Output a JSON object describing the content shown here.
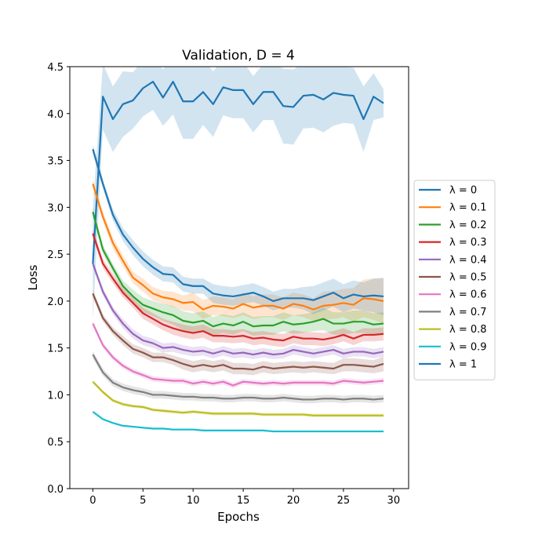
{
  "chart_data": {
    "type": "line",
    "title": "Validation, D = 4",
    "xlabel": "Epochs",
    "ylabel": "Loss",
    "xlim": [
      -2.3,
      31.5
    ],
    "ylim": [
      0.0,
      4.5
    ],
    "xticks": [
      0,
      5,
      10,
      15,
      20,
      25,
      30
    ],
    "xtick_labels": [
      "0",
      "5",
      "10",
      "15",
      "20",
      "25",
      "30"
    ],
    "yticks": [
      0.0,
      0.5,
      1.0,
      1.5,
      2.0,
      2.5,
      3.0,
      3.5,
      4.0,
      4.5
    ],
    "ytick_labels": [
      "0.0",
      "0.5",
      "1.0",
      "1.5",
      "2.0",
      "2.5",
      "3.0",
      "3.5",
      "4.0",
      "4.5"
    ],
    "legend_position": "center-right-outside",
    "x": [
      0,
      1,
      2,
      3,
      4,
      5,
      6,
      7,
      8,
      9,
      10,
      11,
      12,
      13,
      14,
      15,
      16,
      17,
      18,
      19,
      20,
      21,
      22,
      23,
      24,
      25,
      26,
      27,
      28,
      29
    ],
    "series": [
      {
        "name": "λ = 0",
        "color": "#1f77b4",
        "values": [
          2.4,
          4.18,
          3.94,
          4.1,
          4.14,
          4.27,
          4.34,
          4.17,
          4.34,
          4.13,
          4.13,
          4.23,
          4.1,
          4.28,
          4.25,
          4.25,
          4.1,
          4.23,
          4.23,
          4.08,
          4.07,
          4.19,
          4.2,
          4.15,
          4.22,
          4.2,
          4.19,
          3.94,
          4.18,
          4.11
        ],
        "band": [
          0.6,
          0.35,
          0.35,
          0.35,
          0.3,
          0.3,
          0.3,
          0.3,
          0.35,
          0.4,
          0.4,
          0.35,
          0.35,
          0.3,
          0.3,
          0.3,
          0.3,
          0.3,
          0.3,
          0.4,
          0.4,
          0.35,
          0.35,
          0.35,
          0.35,
          0.3,
          0.3,
          0.35,
          0.25,
          0.15
        ]
      },
      {
        "name": "λ = 0.1",
        "color": "#ff7f0e",
        "values": [
          3.25,
          2.9,
          2.62,
          2.43,
          2.25,
          2.17,
          2.08,
          2.04,
          2.02,
          1.98,
          1.99,
          1.91,
          1.95,
          1.94,
          1.92,
          1.97,
          1.93,
          1.95,
          1.95,
          1.92,
          1.97,
          1.95,
          1.91,
          1.95,
          1.96,
          1.98,
          1.96,
          2.03,
          2.02,
          2.0
        ],
        "band": [
          0.05,
          0.05,
          0.06,
          0.06,
          0.06,
          0.07,
          0.07,
          0.07,
          0.08,
          0.08,
          0.1,
          0.1,
          0.1,
          0.1,
          0.1,
          0.12,
          0.12,
          0.12,
          0.12,
          0.12,
          0.12,
          0.12,
          0.12,
          0.15,
          0.15,
          0.15,
          0.18,
          0.2,
          0.22,
          0.24
        ]
      },
      {
        "name": "λ = 0.2",
        "color": "#2ca02c",
        "values": [
          2.95,
          2.55,
          2.35,
          2.16,
          2.05,
          1.96,
          1.92,
          1.88,
          1.85,
          1.79,
          1.77,
          1.79,
          1.73,
          1.76,
          1.74,
          1.78,
          1.73,
          1.74,
          1.74,
          1.78,
          1.75,
          1.76,
          1.78,
          1.81,
          1.76,
          1.76,
          1.78,
          1.78,
          1.75,
          1.76
        ],
        "band": [
          0.05,
          0.05,
          0.05,
          0.06,
          0.07,
          0.08,
          0.08,
          0.09,
          0.1,
          0.1,
          0.1,
          0.1,
          0.1,
          0.1,
          0.1,
          0.1,
          0.1,
          0.1,
          0.1,
          0.1,
          0.1,
          0.1,
          0.1,
          0.12,
          0.12,
          0.12,
          0.12,
          0.12,
          0.12,
          0.12
        ]
      },
      {
        "name": "λ = 0.3",
        "color": "#d62728",
        "values": [
          2.72,
          2.4,
          2.24,
          2.09,
          1.98,
          1.87,
          1.81,
          1.75,
          1.71,
          1.68,
          1.66,
          1.68,
          1.63,
          1.63,
          1.62,
          1.63,
          1.6,
          1.61,
          1.59,
          1.58,
          1.62,
          1.6,
          1.6,
          1.59,
          1.61,
          1.64,
          1.6,
          1.64,
          1.64,
          1.65
        ],
        "band": [
          0.05,
          0.05,
          0.05,
          0.05,
          0.05,
          0.06,
          0.06,
          0.06,
          0.07,
          0.07,
          0.07,
          0.07,
          0.07,
          0.07,
          0.07,
          0.07,
          0.07,
          0.07,
          0.07,
          0.07,
          0.07,
          0.07,
          0.07,
          0.07,
          0.07,
          0.07,
          0.07,
          0.07,
          0.07,
          0.07
        ]
      },
      {
        "name": "λ = 0.4",
        "color": "#9467bd",
        "values": [
          2.4,
          2.1,
          1.9,
          1.76,
          1.65,
          1.58,
          1.55,
          1.5,
          1.51,
          1.48,
          1.46,
          1.47,
          1.44,
          1.47,
          1.44,
          1.45,
          1.43,
          1.45,
          1.43,
          1.44,
          1.48,
          1.46,
          1.44,
          1.46,
          1.48,
          1.44,
          1.46,
          1.46,
          1.44,
          1.46
        ],
        "band": [
          0.04,
          0.04,
          0.04,
          0.05,
          0.05,
          0.05,
          0.05,
          0.05,
          0.05,
          0.05,
          0.05,
          0.05,
          0.05,
          0.05,
          0.05,
          0.05,
          0.05,
          0.05,
          0.05,
          0.05,
          0.05,
          0.05,
          0.05,
          0.05,
          0.05,
          0.05,
          0.05,
          0.05,
          0.05,
          0.05
        ]
      },
      {
        "name": "λ = 0.5",
        "color": "#8c564b",
        "values": [
          2.08,
          1.82,
          1.68,
          1.58,
          1.49,
          1.45,
          1.4,
          1.4,
          1.37,
          1.33,
          1.3,
          1.32,
          1.3,
          1.32,
          1.28,
          1.28,
          1.27,
          1.3,
          1.28,
          1.29,
          1.3,
          1.29,
          1.3,
          1.29,
          1.28,
          1.32,
          1.32,
          1.31,
          1.3,
          1.33
        ],
        "band": [
          0.04,
          0.04,
          0.04,
          0.05,
          0.05,
          0.05,
          0.05,
          0.05,
          0.05,
          0.06,
          0.06,
          0.06,
          0.06,
          0.06,
          0.06,
          0.06,
          0.06,
          0.06,
          0.06,
          0.06,
          0.06,
          0.06,
          0.06,
          0.06,
          0.06,
          0.07,
          0.07,
          0.07,
          0.07,
          0.08
        ]
      },
      {
        "name": "λ = 0.6",
        "color": "#e377c2",
        "values": [
          1.76,
          1.53,
          1.4,
          1.31,
          1.25,
          1.21,
          1.17,
          1.16,
          1.15,
          1.15,
          1.12,
          1.14,
          1.12,
          1.14,
          1.1,
          1.14,
          1.13,
          1.12,
          1.13,
          1.12,
          1.13,
          1.13,
          1.13,
          1.13,
          1.12,
          1.15,
          1.14,
          1.13,
          1.14,
          1.15
        ],
        "band": [
          0.03,
          0.03,
          0.03,
          0.03,
          0.03,
          0.03,
          0.03,
          0.03,
          0.03,
          0.03,
          0.03,
          0.03,
          0.03,
          0.03,
          0.03,
          0.03,
          0.03,
          0.03,
          0.03,
          0.03,
          0.03,
          0.03,
          0.03,
          0.03,
          0.03,
          0.03,
          0.03,
          0.03,
          0.03,
          0.03
        ]
      },
      {
        "name": "λ = 0.7",
        "color": "#7f7f7f",
        "values": [
          1.43,
          1.24,
          1.13,
          1.08,
          1.05,
          1.03,
          1.0,
          1.0,
          0.99,
          0.98,
          0.98,
          0.97,
          0.97,
          0.96,
          0.96,
          0.97,
          0.97,
          0.96,
          0.96,
          0.97,
          0.96,
          0.95,
          0.95,
          0.96,
          0.96,
          0.95,
          0.96,
          0.96,
          0.95,
          0.96
        ],
        "band": [
          0.04,
          0.04,
          0.04,
          0.04,
          0.04,
          0.04,
          0.04,
          0.04,
          0.04,
          0.04,
          0.04,
          0.04,
          0.04,
          0.04,
          0.04,
          0.04,
          0.04,
          0.04,
          0.04,
          0.04,
          0.04,
          0.04,
          0.04,
          0.04,
          0.04,
          0.04,
          0.04,
          0.04,
          0.04,
          0.04
        ]
      },
      {
        "name": "λ = 0.8",
        "color": "#bcbd22",
        "values": [
          1.14,
          1.03,
          0.94,
          0.9,
          0.88,
          0.87,
          0.84,
          0.83,
          0.82,
          0.81,
          0.82,
          0.81,
          0.8,
          0.8,
          0.8,
          0.8,
          0.8,
          0.79,
          0.79,
          0.79,
          0.79,
          0.79,
          0.78,
          0.78,
          0.78,
          0.78,
          0.78,
          0.78,
          0.78,
          0.78
        ],
        "band": [
          0.02,
          0.02,
          0.02,
          0.02,
          0.02,
          0.02,
          0.02,
          0.02,
          0.02,
          0.02,
          0.02,
          0.02,
          0.02,
          0.02,
          0.02,
          0.02,
          0.02,
          0.02,
          0.02,
          0.02,
          0.02,
          0.02,
          0.02,
          0.02,
          0.02,
          0.02,
          0.02,
          0.02,
          0.02,
          0.02
        ]
      },
      {
        "name": "λ = 0.9",
        "color": "#17becf",
        "values": [
          0.82,
          0.74,
          0.7,
          0.67,
          0.66,
          0.65,
          0.64,
          0.64,
          0.63,
          0.63,
          0.63,
          0.62,
          0.62,
          0.62,
          0.62,
          0.62,
          0.62,
          0.62,
          0.61,
          0.61,
          0.61,
          0.61,
          0.61,
          0.61,
          0.61,
          0.61,
          0.61,
          0.61,
          0.61,
          0.61
        ],
        "band": [
          0.01,
          0.01,
          0.01,
          0.01,
          0.01,
          0.01,
          0.01,
          0.01,
          0.01,
          0.01,
          0.01,
          0.01,
          0.01,
          0.01,
          0.01,
          0.01,
          0.01,
          0.01,
          0.01,
          0.01,
          0.01,
          0.01,
          0.01,
          0.01,
          0.01,
          0.01,
          0.01,
          0.01,
          0.01,
          0.01
        ]
      },
      {
        "name": "λ = 1",
        "color": "#1f77b4",
        "values": [
          3.62,
          3.25,
          2.92,
          2.71,
          2.57,
          2.45,
          2.36,
          2.29,
          2.28,
          2.18,
          2.16,
          2.16,
          2.08,
          2.06,
          2.05,
          2.07,
          2.09,
          2.05,
          2.0,
          2.03,
          2.03,
          2.03,
          2.01,
          2.05,
          2.09,
          2.03,
          2.07,
          2.05,
          2.06,
          2.05
        ],
        "band": [
          0.05,
          0.05,
          0.06,
          0.07,
          0.08,
          0.08,
          0.08,
          0.08,
          0.08,
          0.08,
          0.08,
          0.08,
          0.1,
          0.1,
          0.1,
          0.1,
          0.1,
          0.1,
          0.1,
          0.1,
          0.1,
          0.12,
          0.15,
          0.15,
          0.15,
          0.15,
          0.15,
          0.15,
          0.18,
          0.2
        ]
      }
    ]
  }
}
